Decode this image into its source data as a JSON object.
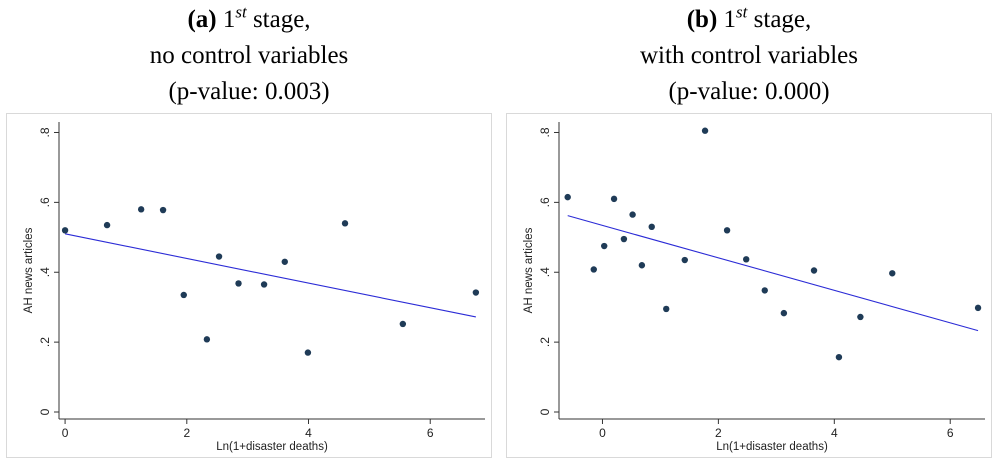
{
  "panels": [
    {
      "caption": {
        "letter": "(a)",
        "stage_num": "1",
        "stage_sup": "st",
        "stage_word": "stage,",
        "line2": "no control variables",
        "line3": "(p-value: 0.003)"
      }
    },
    {
      "caption": {
        "letter": "(b)",
        "stage_num": "1",
        "stage_sup": "st",
        "stage_word": "stage,",
        "line2": "with control variables",
        "line3": "(p-value: 0.000)"
      }
    }
  ],
  "chart_data": [
    {
      "type": "scatter",
      "xlabel": "Ln(1+disaster deaths)",
      "ylabel": "AH news articles",
      "xlim": [
        -0.1,
        6.9
      ],
      "ylim": [
        -0.02,
        0.83
      ],
      "xticks": [
        0,
        2,
        4,
        6
      ],
      "xtick_labels": [
        "0",
        "2",
        "4",
        "6"
      ],
      "yticks": [
        0,
        0.2,
        0.4,
        0.6,
        0.8
      ],
      "ytick_labels": [
        "0",
        ".2",
        ".4",
        ".6",
        ".8"
      ],
      "grid": false,
      "marker_color": "#1f3b57",
      "fit_color": "#2b2bd6",
      "points": [
        {
          "x": 0.0,
          "y": 0.52
        },
        {
          "x": 0.69,
          "y": 0.535
        },
        {
          "x": 1.25,
          "y": 0.58
        },
        {
          "x": 1.61,
          "y": 0.578
        },
        {
          "x": 1.95,
          "y": 0.335
        },
        {
          "x": 2.33,
          "y": 0.208
        },
        {
          "x": 2.53,
          "y": 0.445
        },
        {
          "x": 2.85,
          "y": 0.368
        },
        {
          "x": 3.27,
          "y": 0.365
        },
        {
          "x": 3.61,
          "y": 0.43
        },
        {
          "x": 3.99,
          "y": 0.17
        },
        {
          "x": 4.6,
          "y": 0.54
        },
        {
          "x": 5.55,
          "y": 0.252
        },
        {
          "x": 6.75,
          "y": 0.342
        }
      ],
      "fit_line": {
        "x": [
          0.0,
          6.75
        ],
        "y": [
          0.51,
          0.272
        ]
      }
    },
    {
      "type": "scatter",
      "xlabel": "Ln(1+disaster deaths)",
      "ylabel": "AH news articles",
      "xlim": [
        -0.75,
        6.6
      ],
      "ylim": [
        -0.02,
        0.83
      ],
      "xticks": [
        0,
        2,
        4,
        6
      ],
      "xtick_labels": [
        "0",
        "2",
        "4",
        "6"
      ],
      "yticks": [
        0,
        0.2,
        0.4,
        0.6,
        0.8
      ],
      "ytick_labels": [
        "0",
        ".2",
        ".4",
        ".6",
        ".8"
      ],
      "grid": false,
      "marker_color": "#1f3b57",
      "fit_color": "#2b2bd6",
      "points": [
        {
          "x": -0.6,
          "y": 0.615
        },
        {
          "x": -0.15,
          "y": 0.408
        },
        {
          "x": 0.03,
          "y": 0.475
        },
        {
          "x": 0.2,
          "y": 0.61
        },
        {
          "x": 0.37,
          "y": 0.495
        },
        {
          "x": 0.52,
          "y": 0.565
        },
        {
          "x": 0.68,
          "y": 0.42
        },
        {
          "x": 0.85,
          "y": 0.53
        },
        {
          "x": 1.1,
          "y": 0.295
        },
        {
          "x": 1.42,
          "y": 0.435
        },
        {
          "x": 1.77,
          "y": 0.805
        },
        {
          "x": 2.15,
          "y": 0.52
        },
        {
          "x": 2.48,
          "y": 0.437
        },
        {
          "x": 2.8,
          "y": 0.348
        },
        {
          "x": 3.13,
          "y": 0.283
        },
        {
          "x": 3.65,
          "y": 0.405
        },
        {
          "x": 4.08,
          "y": 0.157
        },
        {
          "x": 4.45,
          "y": 0.272
        },
        {
          "x": 5.0,
          "y": 0.397
        },
        {
          "x": 6.48,
          "y": 0.298
        }
      ],
      "fit_line": {
        "x": [
          -0.6,
          6.48
        ],
        "y": [
          0.562,
          0.233
        ]
      }
    }
  ]
}
